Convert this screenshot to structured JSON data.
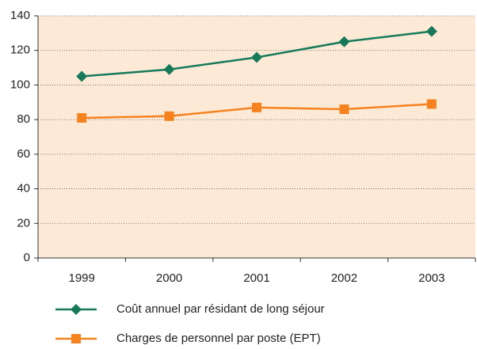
{
  "chart_data": {
    "type": "line",
    "categories": [
      "1999",
      "2000",
      "2001",
      "2002",
      "2003"
    ],
    "series": [
      {
        "name": "Coût annuel par résidant de long séjour",
        "color": "#167a5a",
        "marker": "diamond",
        "values": [
          105,
          109,
          116,
          125,
          131
        ]
      },
      {
        "name": "Charges de personnel par poste (EPT)",
        "color": "#f5821f",
        "marker": "square",
        "values": [
          81,
          82,
          87,
          86,
          89
        ]
      }
    ],
    "ylim": [
      0,
      140
    ],
    "yticks": [
      0,
      20,
      40,
      60,
      80,
      100,
      120,
      140
    ],
    "grid": true,
    "legend": "bottom"
  }
}
